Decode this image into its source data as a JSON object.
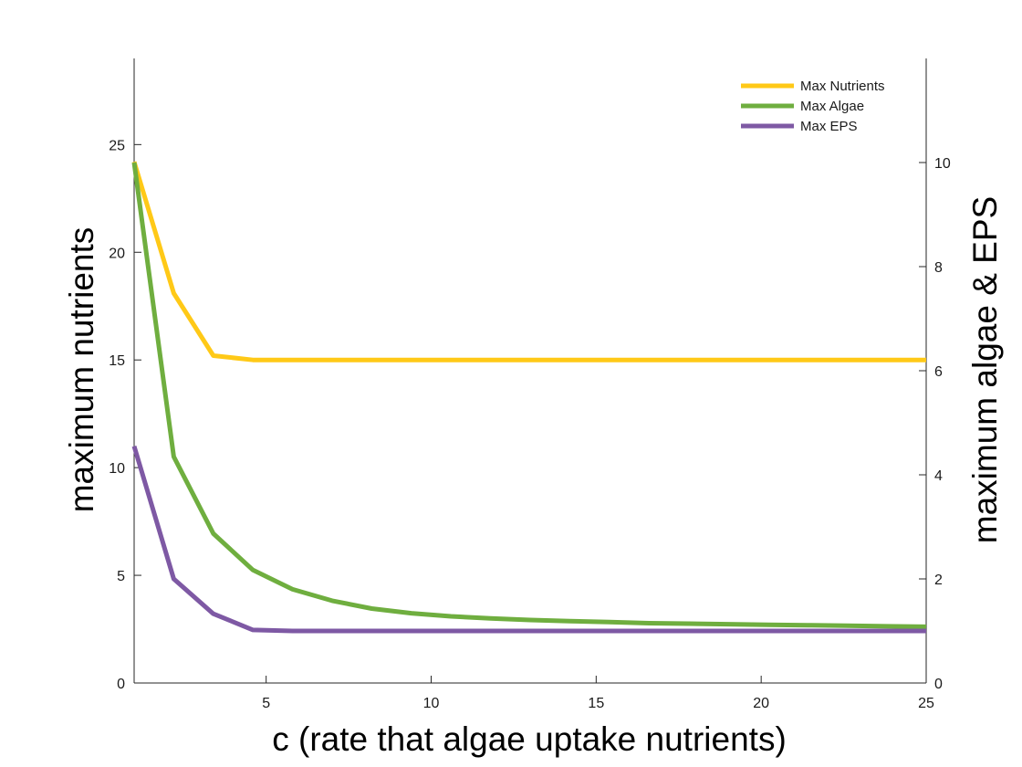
{
  "chart_data": {
    "type": "line",
    "xlabel": "c (rate that algae uptake nutrients)",
    "ylabel_left": "maximum nutrients",
    "ylabel_right": "maximum algae & EPS",
    "xlim": [
      1,
      25
    ],
    "ylim_left": [
      0,
      29
    ],
    "ylim_right": [
      0,
      12
    ],
    "x_ticks": [
      5,
      10,
      15,
      20,
      25
    ],
    "y_ticks_left": [
      0,
      5,
      10,
      15,
      20,
      25
    ],
    "y_ticks_right": [
      0,
      2,
      4,
      6,
      8,
      10
    ],
    "grid": false,
    "legend_position": "top-right",
    "series": [
      {
        "name": "Max Nutrients",
        "axis": "left",
        "color": "#FFC917",
        "x": [
          1,
          2.2,
          3.4,
          4.6,
          5.8,
          7,
          8.2,
          9.4,
          10.6,
          11.8,
          13,
          14.2,
          15.4,
          16.6,
          17.8,
          19,
          20.2,
          21.4,
          22.6,
          23.8,
          25
        ],
        "y": [
          24.2,
          18.1,
          15.2,
          15.0,
          15.0,
          15.0,
          15.0,
          15.0,
          15.0,
          15.0,
          15.0,
          15.0,
          15.0,
          15.0,
          15.0,
          15.0,
          15.0,
          15.0,
          15.0,
          15.0,
          15.0
        ]
      },
      {
        "name": "Max Algae",
        "axis": "right",
        "color": "#6FAE3F",
        "x": [
          1,
          2.2,
          3.4,
          4.6,
          5.8,
          7,
          8.2,
          9.4,
          10.6,
          11.8,
          13,
          14.2,
          15.4,
          16.6,
          17.8,
          19,
          20.2,
          21.4,
          22.6,
          23.8,
          25
        ],
        "y": [
          10.0,
          4.35,
          2.87,
          2.17,
          1.8,
          1.58,
          1.43,
          1.34,
          1.28,
          1.24,
          1.21,
          1.19,
          1.17,
          1.15,
          1.14,
          1.13,
          1.12,
          1.11,
          1.1,
          1.09,
          1.08
        ]
      },
      {
        "name": "Max EPS",
        "axis": "right",
        "color": "#7E59A4",
        "x": [
          1,
          2.2,
          3.4,
          4.6,
          5.8,
          7,
          8.2,
          9.4,
          10.6,
          11.8,
          13,
          14.2,
          15.4,
          16.6,
          17.8,
          19,
          20.2,
          21.4,
          22.6,
          23.8,
          25
        ],
        "y": [
          4.55,
          2.0,
          1.33,
          1.02,
          1.0,
          1.0,
          1.0,
          1.0,
          1.0,
          1.0,
          1.0,
          1.0,
          1.0,
          1.0,
          1.0,
          1.0,
          1.0,
          1.0,
          1.0,
          1.0,
          1.0
        ]
      }
    ]
  }
}
